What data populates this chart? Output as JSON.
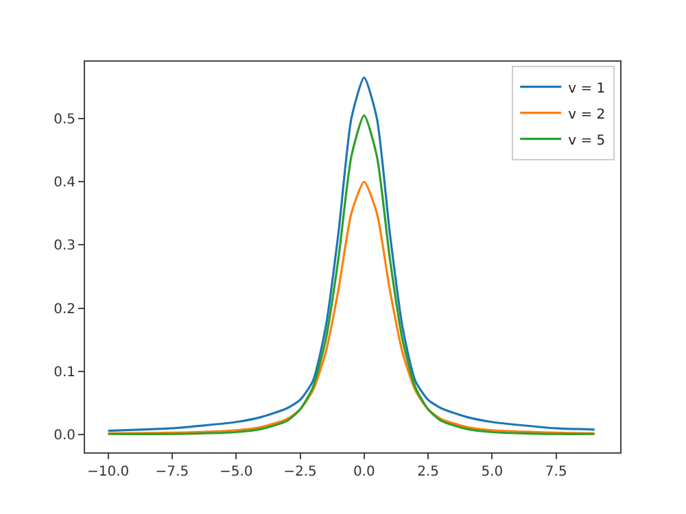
{
  "chart_data": {
    "type": "line",
    "x": [
      -10,
      -7.5,
      -5,
      -4,
      -3,
      -2.5,
      -2,
      -1.5,
      -1,
      -0.5,
      0,
      0.5,
      1,
      1.5,
      2,
      2.5,
      3,
      4,
      5,
      7.5,
      9
    ],
    "series": [
      {
        "name": "v = 1",
        "color": "#1f77b4",
        "values": [
          0.006,
          0.01,
          0.02,
          0.028,
          0.042,
          0.055,
          0.085,
          0.17,
          0.32,
          0.5,
          0.565,
          0.5,
          0.32,
          0.17,
          0.085,
          0.055,
          0.042,
          0.028,
          0.02,
          0.01,
          0.008
        ]
      },
      {
        "name": "v = 2",
        "color": "#ff7f0e",
        "values": [
          0.002,
          0.003,
          0.007,
          0.012,
          0.025,
          0.04,
          0.07,
          0.13,
          0.23,
          0.35,
          0.4,
          0.35,
          0.23,
          0.13,
          0.07,
          0.04,
          0.025,
          0.012,
          0.007,
          0.003,
          0.002
        ]
      },
      {
        "name": "v = 5",
        "color": "#2ca02c",
        "values": [
          0.001,
          0.001,
          0.004,
          0.009,
          0.022,
          0.04,
          0.075,
          0.15,
          0.28,
          0.44,
          0.505,
          0.44,
          0.28,
          0.15,
          0.075,
          0.04,
          0.022,
          0.009,
          0.004,
          0.001,
          0.001
        ]
      }
    ],
    "xlim": [
      -10.9,
      10
    ],
    "ylim": [
      -0.028,
      0.59
    ],
    "xticks": [
      {
        "value": -10,
        "label": "−10.0"
      },
      {
        "value": -7.5,
        "label": "−7.5"
      },
      {
        "value": -5,
        "label": "−5.0"
      },
      {
        "value": -2.5,
        "label": "−2.5"
      },
      {
        "value": 0,
        "label": "0.0"
      },
      {
        "value": 2.5,
        "label": "2.5"
      },
      {
        "value": 5,
        "label": "5.0"
      },
      {
        "value": 7.5,
        "label": "7.5"
      }
    ],
    "yticks": [
      {
        "value": 0,
        "label": "0.0"
      },
      0.1,
      0.2,
      0.3,
      0.4,
      0.5
    ],
    "legend": "top right",
    "marker": "none",
    "line_style": "solid"
  }
}
